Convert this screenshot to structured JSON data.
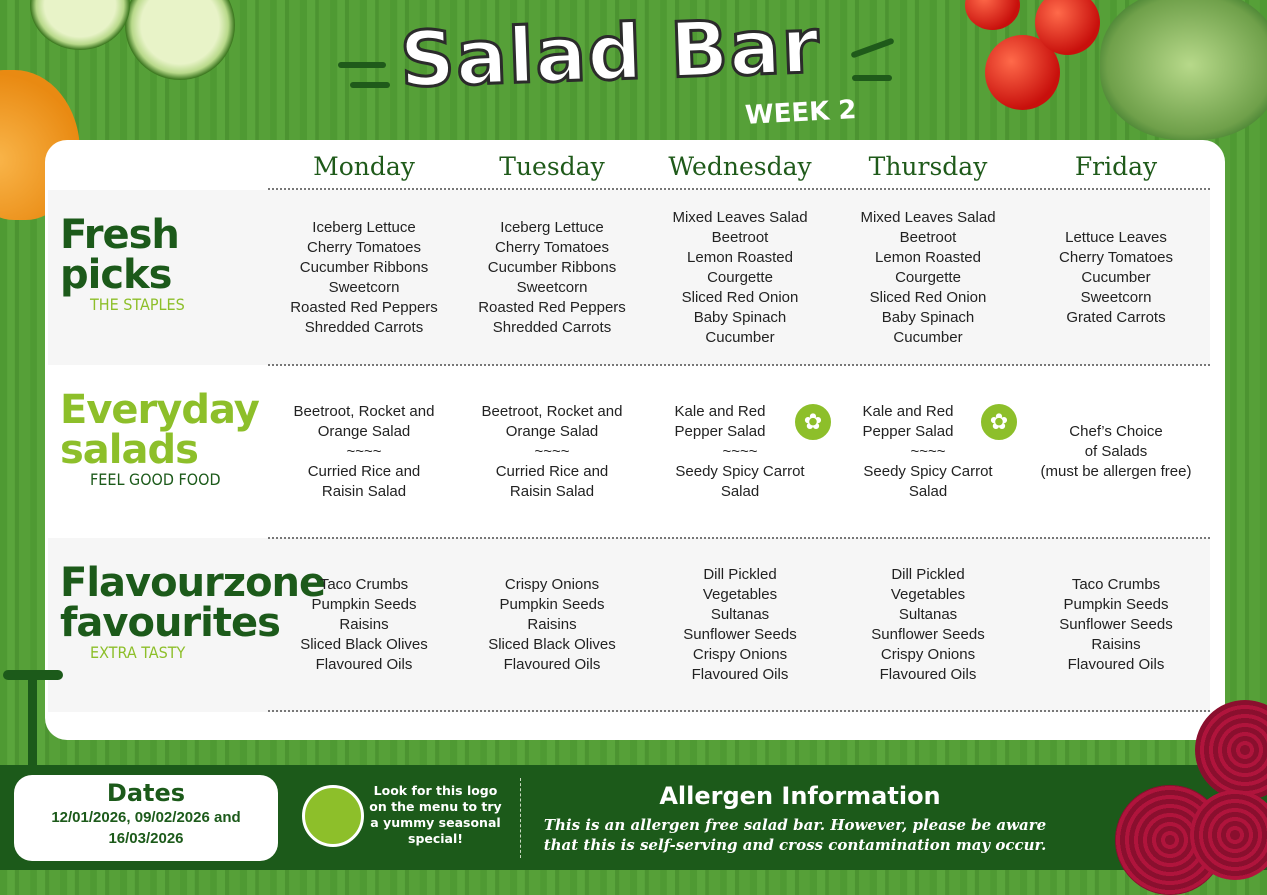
{
  "header": {
    "title": "Salad Bar",
    "subtitle": "WEEK 2"
  },
  "days": [
    "Monday",
    "Tuesday",
    "Wednesday",
    "Thursday",
    "Friday"
  ],
  "categories": [
    {
      "title1": "Fresh",
      "title2": "picks",
      "tagline": "THE STAPLES",
      "color": "#1c5a1a",
      "tagcolor": "#8dbf2a"
    },
    {
      "title1": "Everyday",
      "title2": "salads",
      "tagline": "FEEL GOOD FOOD",
      "color": "#8dbf2a",
      "tagcolor": "#1c5a1a"
    },
    {
      "title1": "Flavourzone",
      "title2": "favourites",
      "tagline": "EXTRA TASTY",
      "color": "#1c5a1a",
      "tagcolor": "#8dbf2a"
    }
  ],
  "menu": [
    [
      [
        "Iceberg Lettuce",
        "Cherry Tomatoes",
        "Cucumber Ribbons",
        "Sweetcorn",
        "Roasted Red Peppers",
        "Shredded Carrots"
      ],
      [
        "Iceberg Lettuce",
        "Cherry Tomatoes",
        "Cucumber Ribbons",
        "Sweetcorn",
        "Roasted Red Peppers",
        "Shredded Carrots"
      ],
      [
        "Mixed Leaves Salad",
        "Beetroot",
        "Lemon Roasted",
        "Courgette",
        "Sliced Red Onion",
        "Baby Spinach",
        "Cucumber"
      ],
      [
        "Mixed Leaves Salad",
        "Beetroot",
        "Lemon Roasted",
        "Courgette",
        "Sliced Red Onion",
        "Baby Spinach",
        "Cucumber"
      ],
      [
        "Lettuce Leaves",
        "Cherry Tomatoes",
        "Cucumber",
        "Sweetcorn",
        "Grated Carrots"
      ]
    ],
    [
      [
        "Beetroot, Rocket and",
        "Orange Salad",
        "~~~~",
        "Curried Rice and",
        "Raisin Salad"
      ],
      [
        "Beetroot, Rocket and",
        "Orange Salad",
        "~~~~",
        "Curried Rice and",
        "Raisin Salad"
      ],
      [
        "Kale and Red",
        "Pepper Salad",
        "~~~~",
        "Seedy Spicy Carrot",
        "Salad"
      ],
      [
        "Kale and Red",
        "Pepper Salad",
        "~~~~",
        "Seedy Spicy Carrot",
        "Salad"
      ],
      [
        "Chef’s Choice",
        "of Salads",
        "(must be allergen free)"
      ]
    ],
    [
      [
        "Taco Crumbs",
        "Pumpkin Seeds",
        "Raisins",
        "Sliced Black Olives",
        "Flavoured Oils"
      ],
      [
        "Crispy Onions",
        "Pumpkin Seeds",
        "Raisins",
        "Sliced Black Olives",
        "Flavoured Oils"
      ],
      [
        "Dill Pickled",
        "Vegetables",
        "Sultanas",
        "Sunflower Seeds",
        "Crispy Onions",
        "Flavoured Oils"
      ],
      [
        "Dill Pickled",
        "Vegetables",
        "Sultanas",
        "Sunflower Seeds",
        "Crispy Onions",
        "Flavoured Oils"
      ],
      [
        "Taco Crumbs",
        "Pumpkin Seeds",
        "Sunflower Seeds",
        "Raisins",
        "Flavoured Oils"
      ]
    ]
  ],
  "seasonal_special_icon": "radish-icon",
  "footer": {
    "dates_title": "Dates",
    "dates_line1": "12/01/2026, 09/02/2026 and",
    "dates_line2": "16/03/2026",
    "logo_note": "Look for this logo on the menu to try a yummy seasonal special!",
    "allergen_title": "Allergen Information",
    "allergen_text": "This is an allergen free salad bar. However, please be aware that this is self-serving and cross contamination may occur."
  },
  "colors": {
    "dark_green": "#1c5a1a",
    "lime": "#8dbf2a",
    "background_green": "#56a038"
  }
}
